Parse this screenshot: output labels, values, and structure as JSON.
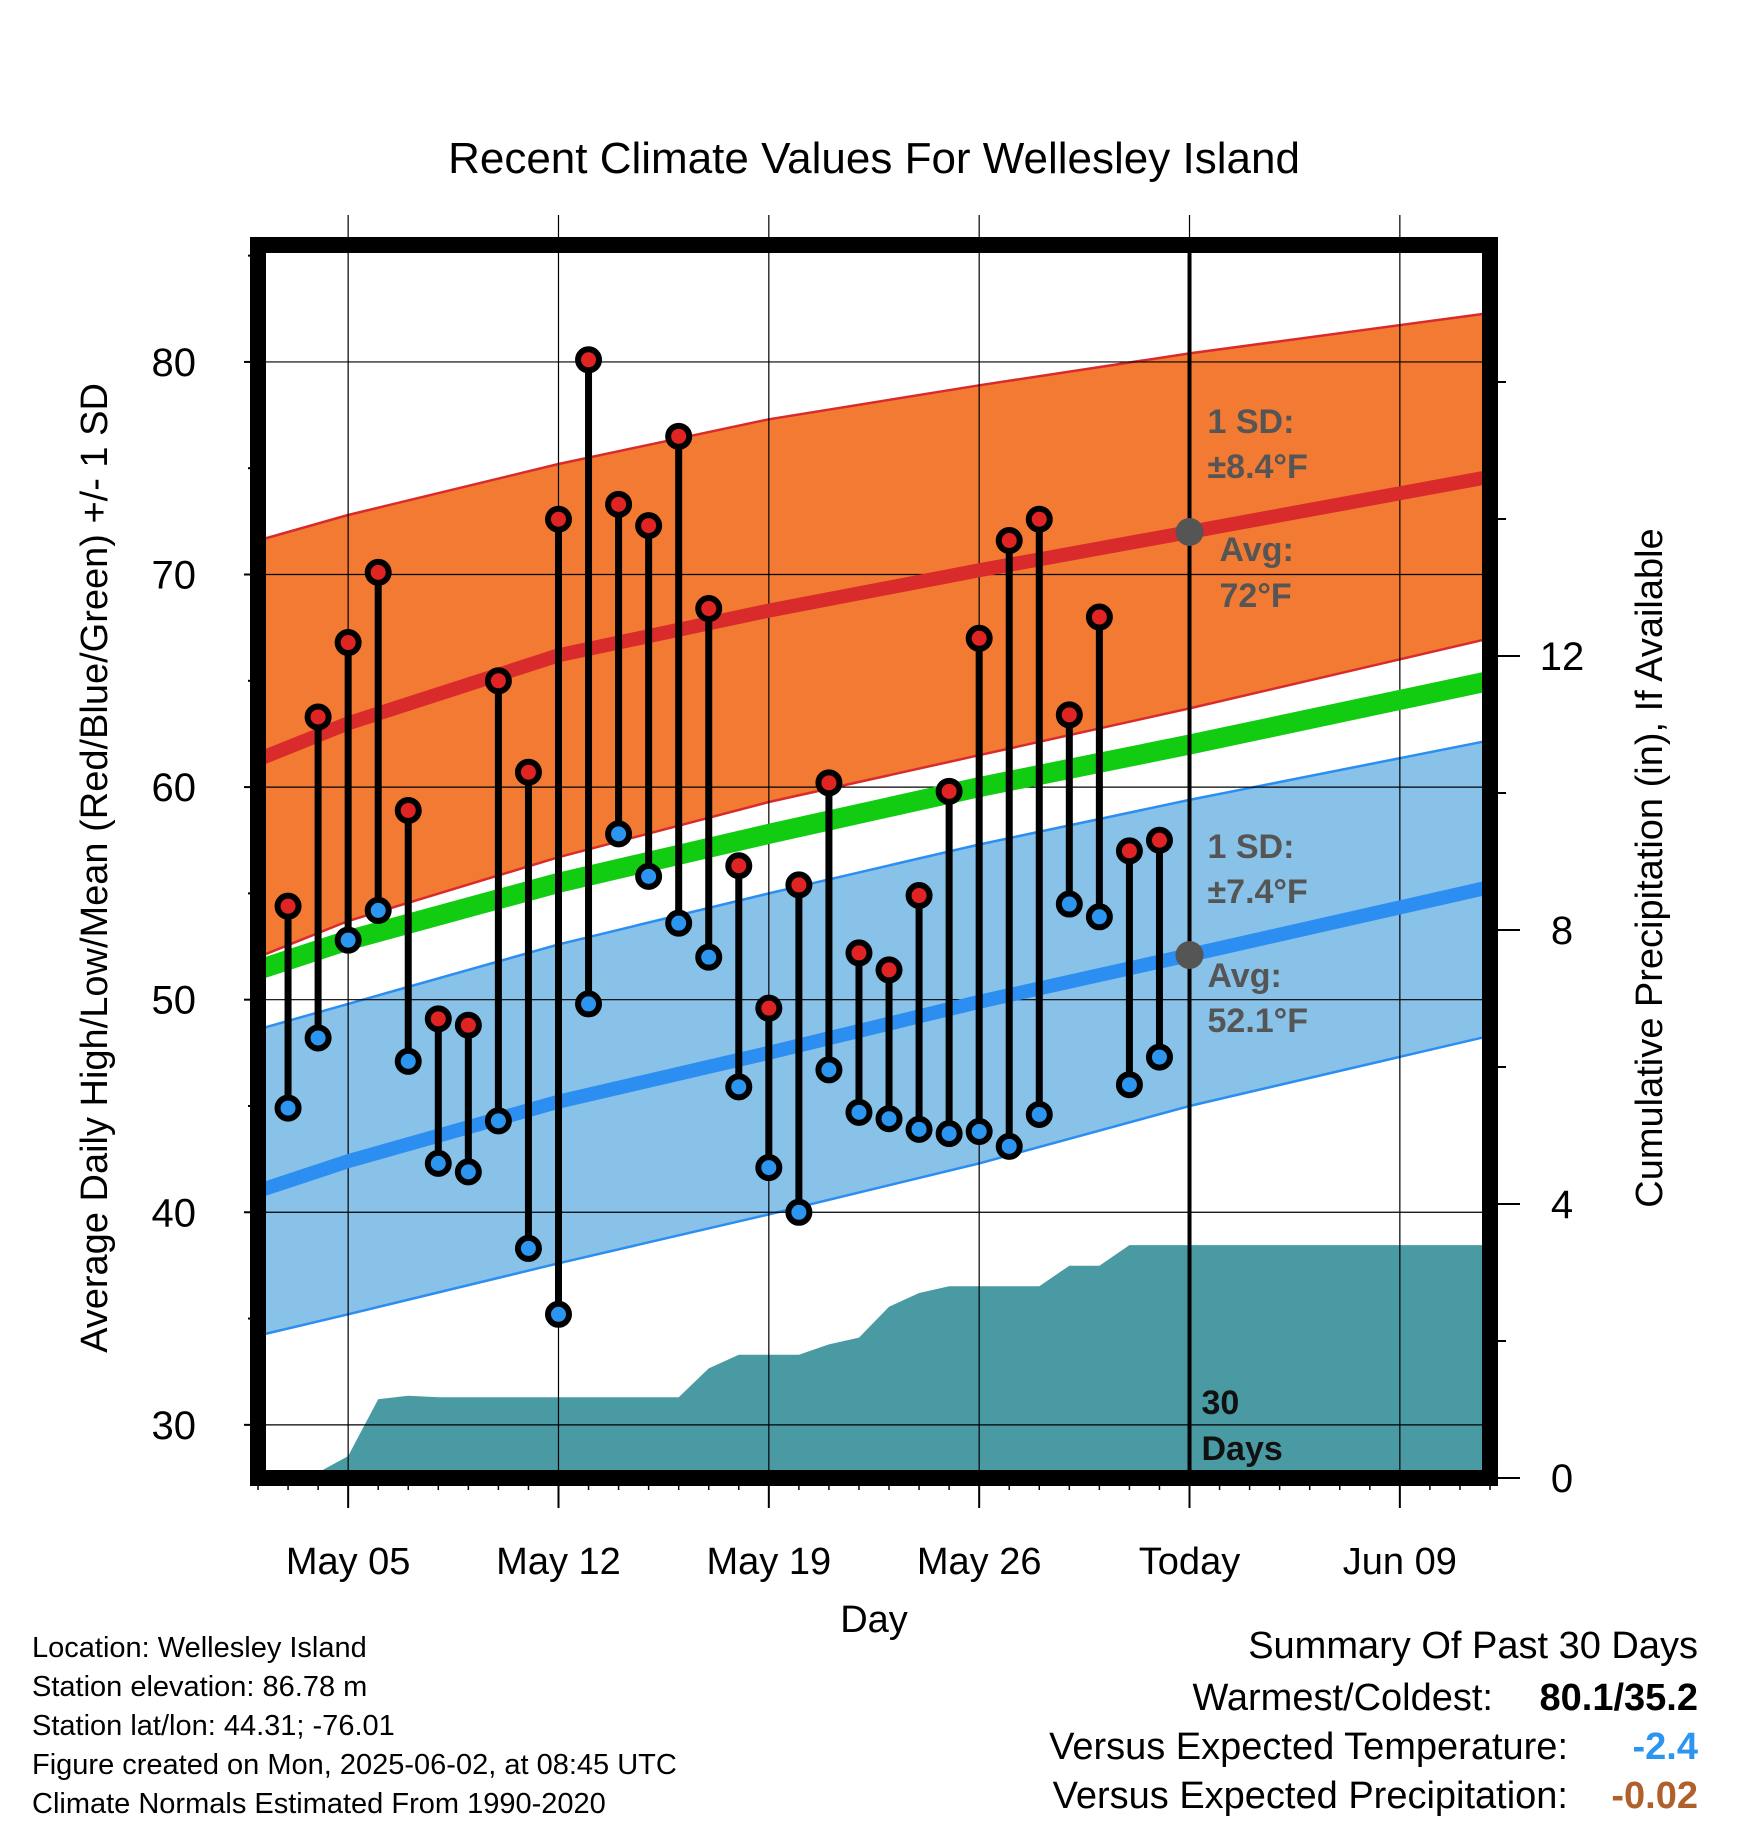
{
  "chart_data": {
    "type": "line",
    "title": "Recent Climate Values For Wellesley Island",
    "xlabel": "Day",
    "ylabel": "Average Daily High/Low/Mean (Red/Blue/Green) +/- 1 SD",
    "y2label": "Cumulative Precipitation (in), If Available",
    "ylim": [
      27.5,
      85.5
    ],
    "y2lim": [
      0,
      18
    ],
    "yticks": [
      30,
      40,
      50,
      60,
      70,
      80
    ],
    "y2ticks": [
      0,
      4,
      8,
      12
    ],
    "x_start": "2025-05-02",
    "x_end": "2025-06-12",
    "xticks": [
      {
        "x": "2025-05-05",
        "label": "May 05"
      },
      {
        "x": "2025-05-12",
        "label": "May 12"
      },
      {
        "x": "2025-05-19",
        "label": "May 19"
      },
      {
        "x": "2025-05-26",
        "label": "May 26"
      },
      {
        "x": "2025-06-02",
        "label": "Today"
      },
      {
        "x": "2025-06-09",
        "label": "Jun 09"
      }
    ],
    "grid": true,
    "today": "2025-06-02",
    "today_label": [
      "30",
      "Days"
    ],
    "colors": {
      "high_band": "#f37a32",
      "high_line": "#d92b2b",
      "low_band": "#88c2e8",
      "low_line": "#2b8ef0",
      "mean_line": "#11cc11",
      "precip": "#4a9aa4",
      "text_gray": "#555555",
      "high_point": "#e02424",
      "low_point": "#2b95ef"
    },
    "normals": {
      "x": [
        "2025-05-02",
        "2025-05-05",
        "2025-05-12",
        "2025-05-19",
        "2025-05-26",
        "2025-06-02",
        "2025-06-12"
      ],
      "high_avg": [
        61.3,
        63.0,
        66.2,
        68.3,
        70.2,
        72.0,
        74.6
      ],
      "high_sd_upper": [
        71.6,
        72.8,
        75.2,
        77.3,
        78.9,
        80.4,
        82.3
      ],
      "high_sd_lower": [
        52.0,
        53.7,
        56.7,
        59.3,
        61.5,
        63.7,
        67.0
      ],
      "mean_avg": [
        51.4,
        52.8,
        55.5,
        57.8,
        60.0,
        62.0,
        65.0
      ],
      "low_avg": [
        41.0,
        42.4,
        45.2,
        47.5,
        49.9,
        52.1,
        55.3
      ],
      "low_sd_upper": [
        48.6,
        49.8,
        52.6,
        55.0,
        57.3,
        59.4,
        62.2
      ],
      "low_sd_lower": [
        34.2,
        35.2,
        37.6,
        39.9,
        42.3,
        45.0,
        48.3
      ]
    },
    "normal_labels": {
      "high_sd": [
        "1 SD:",
        "±8.4°F"
      ],
      "high_avg": [
        "Avg:",
        "72°F"
      ],
      "low_sd": [
        "1 SD:",
        "±7.4°F"
      ],
      "low_avg": [
        "Avg:",
        "52.1°F"
      ],
      "high_today": 72.0,
      "low_today": 52.1
    },
    "observed": {
      "dates": [
        "2025-05-03",
        "2025-05-04",
        "2025-05-05",
        "2025-05-06",
        "2025-05-07",
        "2025-05-08",
        "2025-05-09",
        "2025-05-10",
        "2025-05-11",
        "2025-05-12",
        "2025-05-13",
        "2025-05-14",
        "2025-05-15",
        "2025-05-16",
        "2025-05-17",
        "2025-05-18",
        "2025-05-19",
        "2025-05-20",
        "2025-05-21",
        "2025-05-22",
        "2025-05-23",
        "2025-05-24",
        "2025-05-25",
        "2025-05-26",
        "2025-05-27",
        "2025-05-28",
        "2025-05-29",
        "2025-05-30",
        "2025-05-31",
        "2025-06-01"
      ],
      "high": [
        54.4,
        63.3,
        66.8,
        70.1,
        58.9,
        49.1,
        48.8,
        65.0,
        60.7,
        72.6,
        80.1,
        73.3,
        72.3,
        76.5,
        68.4,
        56.3,
        49.6,
        55.4,
        60.2,
        52.2,
        51.4,
        54.9,
        59.8,
        67.0,
        71.6,
        72.6,
        63.4,
        68.0,
        57.0,
        57.5
      ],
      "low": [
        44.9,
        48.2,
        52.8,
        54.2,
        47.1,
        42.3,
        41.9,
        44.3,
        38.3,
        35.2,
        49.8,
        57.8,
        55.8,
        53.6,
        52.0,
        45.9,
        42.1,
        40.0,
        46.7,
        44.7,
        44.4,
        43.9,
        43.7,
        43.8,
        43.1,
        44.6,
        54.5,
        53.9,
        46.0,
        47.3
      ]
    },
    "precip": {
      "x": [
        "2025-05-02",
        "2025-05-02",
        "2025-05-03",
        "2025-05-04",
        "2025-05-05",
        "2025-05-06",
        "2025-05-07",
        "2025-05-08",
        "2025-05-09",
        "2025-05-10",
        "2025-05-11",
        "2025-05-12",
        "2025-05-13",
        "2025-05-14",
        "2025-05-15",
        "2025-05-16",
        "2025-05-17",
        "2025-05-18",
        "2025-05-19",
        "2025-05-20",
        "2025-05-21",
        "2025-05-22",
        "2025-05-23",
        "2025-05-24",
        "2025-05-25",
        "2025-05-26",
        "2025-05-27",
        "2025-05-28",
        "2025-05-29",
        "2025-05-30",
        "2025-05-31",
        "2025-06-01",
        "2025-06-02",
        "2025-06-12",
        "2025-06-12"
      ],
      "y": [
        0,
        0,
        0.08,
        0.08,
        0.32,
        1.15,
        1.2,
        1.18,
        1.18,
        1.18,
        1.18,
        1.18,
        1.18,
        1.18,
        1.18,
        1.18,
        1.6,
        1.8,
        1.8,
        1.8,
        1.95,
        2.05,
        2.5,
        2.7,
        2.8,
        2.8,
        2.8,
        2.8,
        3.1,
        3.1,
        3.4,
        3.4,
        3.4,
        3.4,
        0
      ]
    }
  },
  "footer": {
    "location": "Location: Wellesley Island",
    "elevation": "Station elevation: 86.78 m",
    "latlon": "Station lat/lon: 44.31; -76.01",
    "created": "Figure created on Mon, 2025-06-02, at 08:45 UTC",
    "normals": "Climate Normals Estimated From 1990-2020"
  },
  "summary": {
    "title": "Summary Of Past 30 Days",
    "warm_label": "Warmest/Coldest:",
    "warm_value": "80.1/35.2",
    "temp_label": "Versus Expected Temperature:",
    "temp_value": "-2.4",
    "temp_color": "#2b95ef",
    "precip_label": "Versus Expected Precipitation:",
    "precip_value": "-0.02",
    "precip_color": "#b0602a"
  }
}
